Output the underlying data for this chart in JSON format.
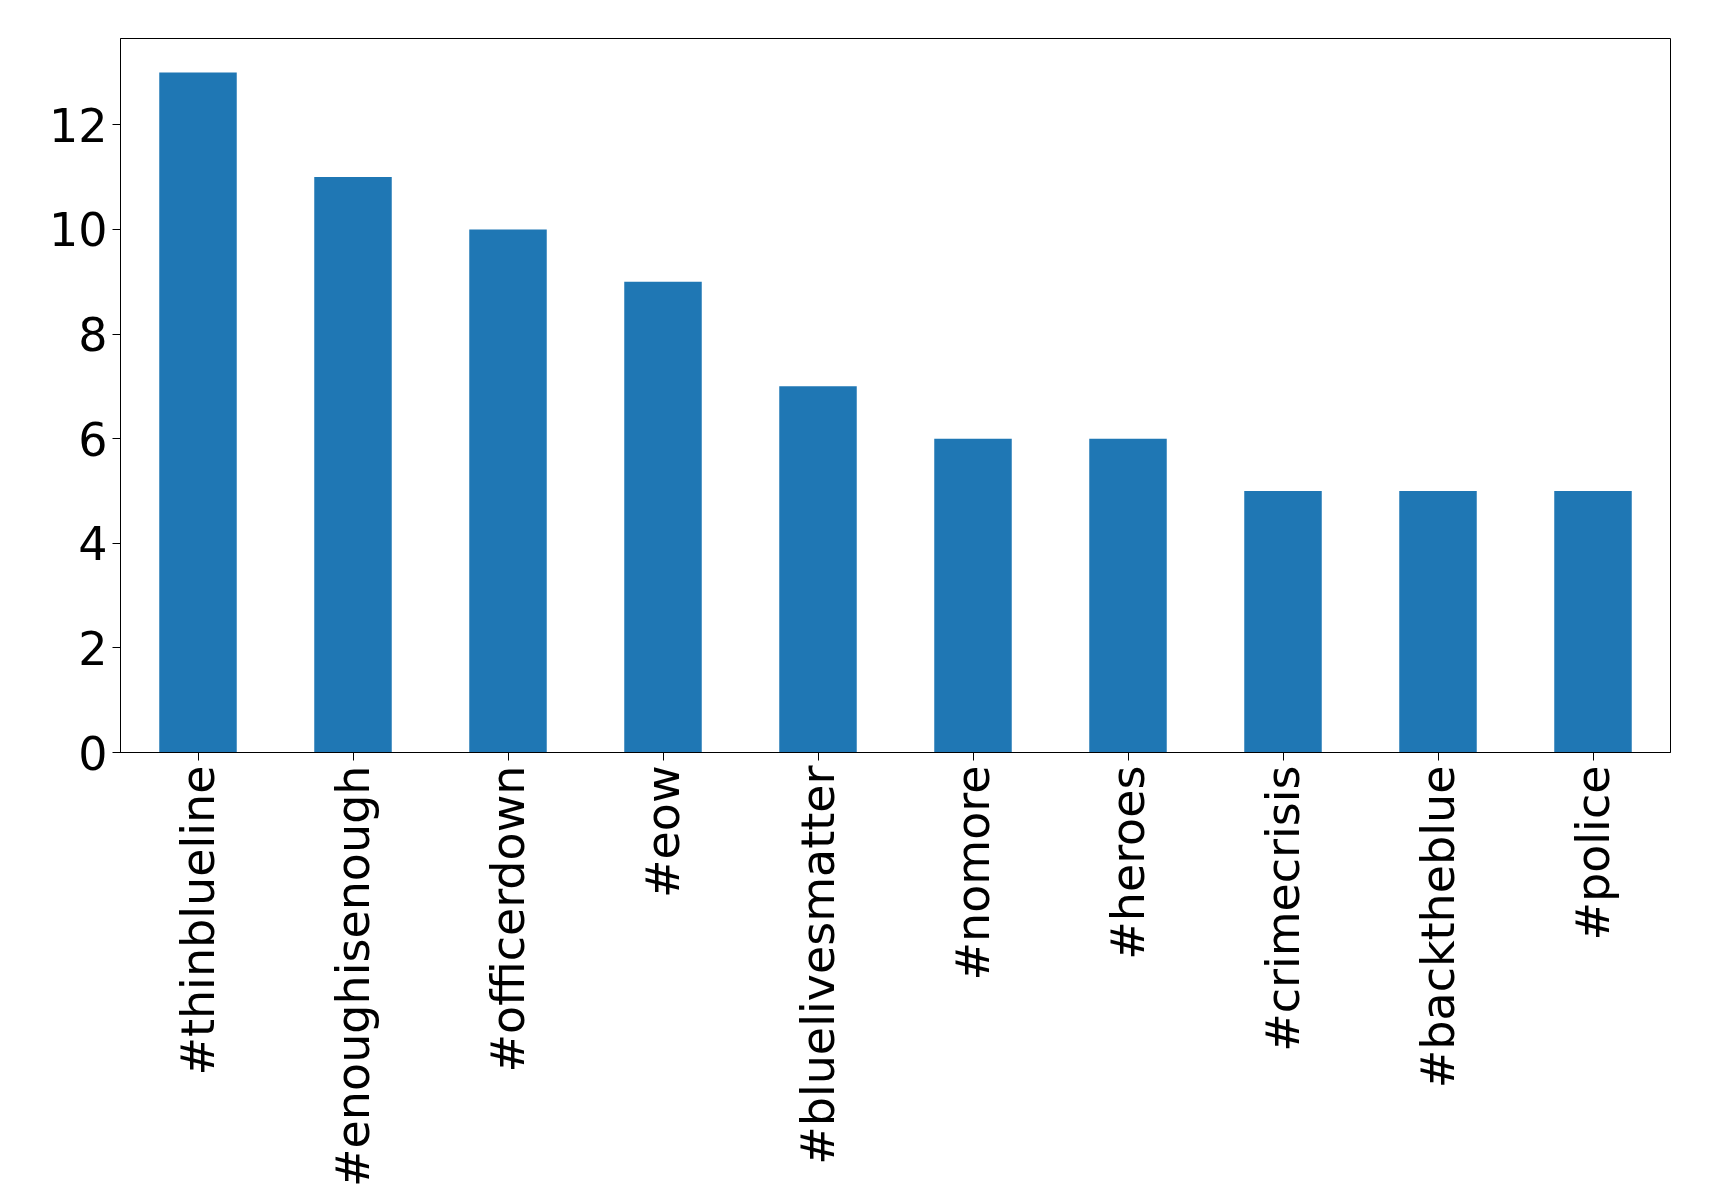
{
  "chart_data": {
    "type": "bar",
    "categories": [
      "#thinblueline",
      "#enoughisenough",
      "#officerdown",
      "#eow",
      "#bluelivesmatter",
      "#nomore",
      "#heroes",
      "#crimecrisis",
      "#backtheblue",
      "#police"
    ],
    "values": [
      13,
      11,
      10,
      9,
      7,
      6,
      6,
      5,
      5,
      5
    ],
    "color": "#1f77b4",
    "ylim": [
      0,
      13.65
    ],
    "yticks": [
      0,
      2,
      4,
      6,
      8,
      10,
      12
    ],
    "grid": false
  }
}
